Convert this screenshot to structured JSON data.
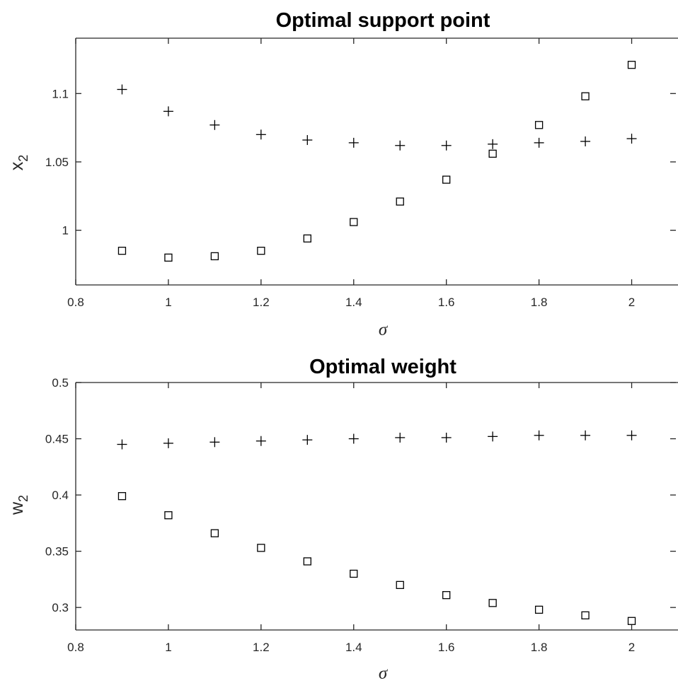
{
  "chart_data": [
    {
      "type": "scatter",
      "title": "Optimal support point",
      "xlabel": "σ",
      "ylabel": "x",
      "ylabel_subscript": "2",
      "xlim": [
        0.8,
        2.1
      ],
      "ylim": [
        0.96,
        1.1405
      ],
      "xticks": [
        0.8,
        1.0,
        1.2,
        1.4,
        1.6,
        1.8,
        2.0
      ],
      "xtick_labels": [
        "0.8",
        "1",
        "1.2",
        "1.4",
        "1.6",
        "1.8",
        "2"
      ],
      "yticks": [
        1.0,
        1.05,
        1.1
      ],
      "ytick_labels": [
        "1",
        "1.05",
        "1.1"
      ],
      "grid": false,
      "x": [
        0.9,
        1.0,
        1.1,
        1.2,
        1.3,
        1.4,
        1.5,
        1.6,
        1.7,
        1.8,
        1.9,
        2.0
      ],
      "series": [
        {
          "marker": "plus",
          "values": [
            1.103,
            1.087,
            1.077,
            1.07,
            1.066,
            1.064,
            1.062,
            1.062,
            1.063,
            1.064,
            1.065,
            1.067
          ]
        },
        {
          "marker": "square",
          "values": [
            0.985,
            0.98,
            0.981,
            0.985,
            0.994,
            1.006,
            1.021,
            1.037,
            1.056,
            1.077,
            1.098,
            1.121
          ]
        }
      ]
    },
    {
      "type": "scatter",
      "title": "Optimal weight",
      "xlabel": "σ",
      "ylabel": "w",
      "ylabel_subscript": "2",
      "xlim": [
        0.8,
        2.1
      ],
      "ylim": [
        0.28,
        0.5
      ],
      "xticks": [
        0.8,
        1.0,
        1.2,
        1.4,
        1.6,
        1.8,
        2.0
      ],
      "xtick_labels": [
        "0.8",
        "1",
        "1.2",
        "1.4",
        "1.6",
        "1.8",
        "2"
      ],
      "yticks": [
        0.3,
        0.35,
        0.4,
        0.45,
        0.5
      ],
      "ytick_labels": [
        "0.3",
        "0.35",
        "0.4",
        "0.45",
        "0.5"
      ],
      "grid": false,
      "x": [
        0.9,
        1.0,
        1.1,
        1.2,
        1.3,
        1.4,
        1.5,
        1.6,
        1.7,
        1.8,
        1.9,
        2.0
      ],
      "series": [
        {
          "marker": "plus",
          "values": [
            0.445,
            0.446,
            0.447,
            0.448,
            0.449,
            0.45,
            0.451,
            0.451,
            0.452,
            0.453,
            0.453,
            0.453
          ]
        },
        {
          "marker": "square",
          "values": [
            0.399,
            0.382,
            0.366,
            0.353,
            0.341,
            0.33,
            0.32,
            0.311,
            0.304,
            0.298,
            0.293,
            0.288
          ]
        }
      ]
    }
  ]
}
